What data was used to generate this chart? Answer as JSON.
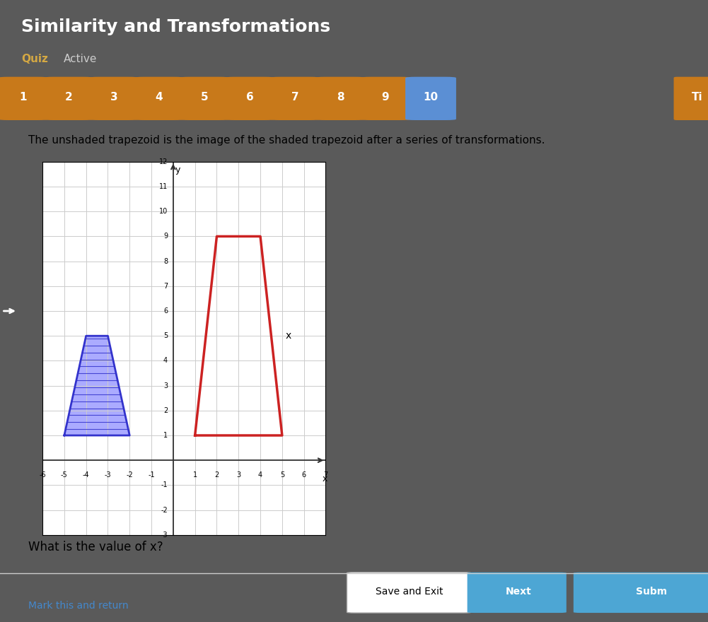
{
  "title": "Similarity and Transformations",
  "subtitle_quiz": "Quiz",
  "subtitle_active": "Active",
  "question_numbers": [
    1,
    2,
    3,
    4,
    5,
    6,
    7,
    8,
    9,
    10
  ],
  "description": "The unshaded trapezoid is the image of the shaded trapezoid after a series of transformations.",
  "question": "What is the value of x?",
  "footer_left": "Mark this and return",
  "footer_btn1": "Save and Exit",
  "footer_btn2": "Next",
  "footer_btn3": "Subm",
  "bg_dark": "#5a5a5a",
  "bg_light": "#f0f0f0",
  "bg_white": "#ffffff",
  "header_bg": "#4a4a4a",
  "quiz_color": "#d4a843",
  "active_color": "#cccccc",
  "number_bg": "#c8791a",
  "number_10_bg": "#5b8fd4",
  "blue_trap_x": [
    -5,
    -2,
    -3,
    -4,
    -5
  ],
  "blue_trap_y": [
    1,
    1,
    5,
    5,
    1
  ],
  "red_trap_x": [
    1,
    5,
    4,
    2,
    1
  ],
  "red_trap_y": [
    1,
    1,
    9,
    9,
    1
  ],
  "blue_fill": "#6666ff",
  "blue_edge": "#3333cc",
  "red_edge": "#cc2222",
  "xmin": -6,
  "xmax": 7,
  "ymin": -3,
  "ymax": 12,
  "x_label": "x",
  "y_label": "y",
  "grid_color": "#cccccc",
  "axis_color": "#333333"
}
